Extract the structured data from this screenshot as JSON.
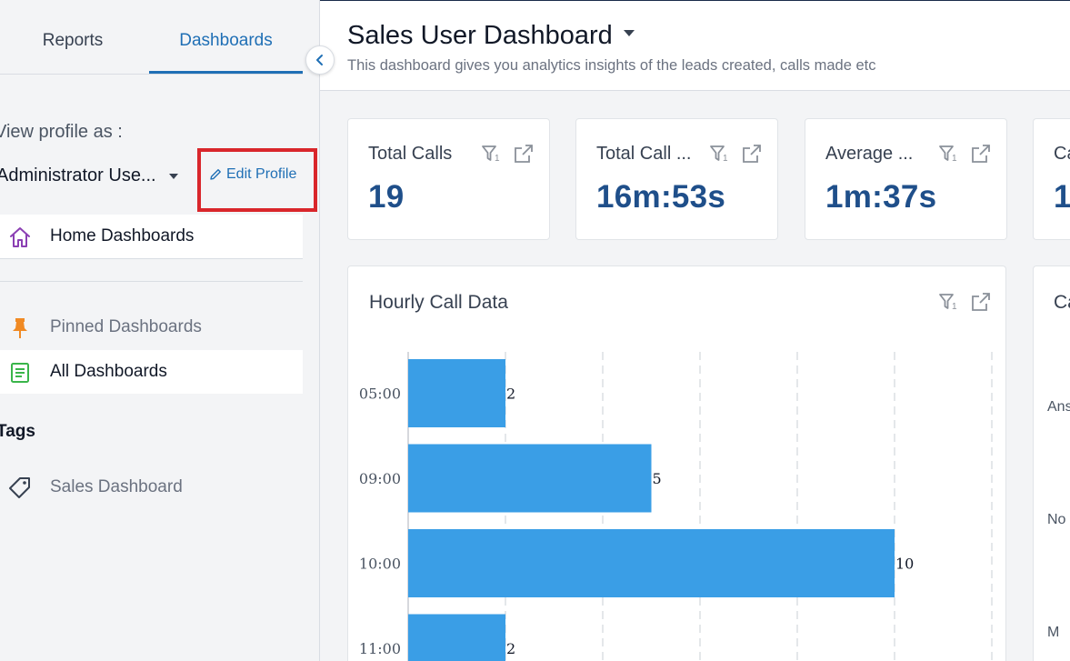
{
  "sidebar": {
    "tabs": [
      {
        "label": "Reports",
        "active": false
      },
      {
        "label": "Dashboards",
        "active": true
      }
    ],
    "view_profile_label": "View profile as :",
    "profile_selected": "Administrator Use...",
    "edit_profile_label": "Edit Profile",
    "home_dashboards": "Home Dashboards",
    "pinned_dashboards": "Pinned Dashboards",
    "all_dashboards": "All Dashboards",
    "tags_heading": "Tags",
    "tag_items": [
      "Sales Dashboard"
    ]
  },
  "header": {
    "title": "Sales User Dashboard",
    "description": "This dashboard gives you analytics insights of the leads created, calls made etc"
  },
  "kpis": [
    {
      "title": "Total Calls",
      "value": "19"
    },
    {
      "title": "Total Call ...",
      "value": "16m:53s"
    },
    {
      "title": "Average ...",
      "value": "1m:37s"
    },
    {
      "title": "Ca",
      "value": "1"
    }
  ],
  "chart_card": {
    "title": "Hourly Call Data"
  },
  "side_card": {
    "title": "Ca",
    "labels": [
      "Ans",
      "No",
      "M"
    ]
  },
  "colors": {
    "accent": "#1f6fb5",
    "kpi_value": "#1f4f8a",
    "bar": "#3a9ee6",
    "highlight_box": "#d9262b"
  },
  "chart_data": {
    "type": "bar",
    "orientation": "horizontal",
    "title": "Hourly Call Data",
    "categories": [
      "05:00",
      "09:00",
      "10:00",
      "11:00"
    ],
    "values": [
      2,
      5,
      10,
      2
    ],
    "xlim": [
      0,
      12
    ],
    "grid": true
  }
}
